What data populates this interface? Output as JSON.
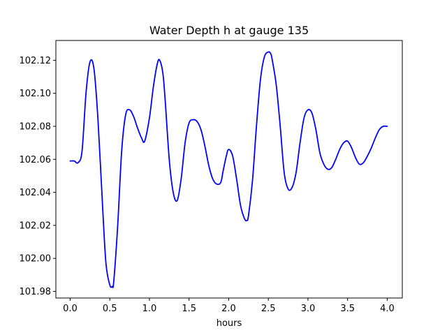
{
  "chart_data": {
    "type": "line",
    "title": "Water Depth h at gauge 135",
    "xlabel": "hours",
    "ylabel": "",
    "xlim": [
      -0.18,
      4.19
    ],
    "ylim": [
      101.976,
      102.132
    ],
    "xticks": [
      0.0,
      0.5,
      1.0,
      1.5,
      2.0,
      2.5,
      3.0,
      3.5,
      4.0
    ],
    "xtick_labels": [
      "0.0",
      "0.5",
      "1.0",
      "1.5",
      "2.0",
      "2.5",
      "3.0",
      "3.5",
      "4.0"
    ],
    "yticks": [
      101.98,
      102.0,
      102.02,
      102.04,
      102.06,
      102.08,
      102.1,
      102.12
    ],
    "ytick_labels": [
      "101.98",
      "102.00",
      "102.02",
      "102.04",
      "102.06",
      "102.08",
      "102.10",
      "102.12"
    ],
    "grid": false,
    "series": [
      {
        "color": "#0000ff",
        "x": [
          0.0,
          0.05,
          0.1,
          0.15,
          0.2,
          0.25,
          0.3,
          0.35,
          0.4,
          0.45,
          0.5,
          0.53,
          0.55,
          0.6,
          0.65,
          0.7,
          0.75,
          0.8,
          0.85,
          0.9,
          0.94,
          1.0,
          1.05,
          1.1,
          1.13,
          1.17,
          1.2,
          1.25,
          1.3,
          1.35,
          1.4,
          1.45,
          1.5,
          1.55,
          1.6,
          1.65,
          1.7,
          1.75,
          1.8,
          1.85,
          1.9,
          1.93,
          1.97,
          2.0,
          2.05,
          2.1,
          2.15,
          2.2,
          2.23,
          2.25,
          2.3,
          2.35,
          2.4,
          2.45,
          2.5,
          2.53,
          2.55,
          2.6,
          2.65,
          2.7,
          2.75,
          2.8,
          2.85,
          2.9,
          2.95,
          3.0,
          3.05,
          3.1,
          3.15,
          3.2,
          3.25,
          3.3,
          3.35,
          3.4,
          3.45,
          3.5,
          3.55,
          3.6,
          3.65,
          3.7,
          3.75,
          3.8,
          3.85,
          3.9,
          3.95,
          4.0
        ],
        "y": [
          102.059,
          102.059,
          102.058,
          102.065,
          102.1,
          102.119,
          102.115,
          102.085,
          102.04,
          101.998,
          101.984,
          101.983,
          101.986,
          102.02,
          102.065,
          102.087,
          102.09,
          102.086,
          102.079,
          102.073,
          102.071,
          102.085,
          102.104,
          102.118,
          102.12,
          102.112,
          102.095,
          102.06,
          102.04,
          102.035,
          102.048,
          102.07,
          102.082,
          102.084,
          102.083,
          102.078,
          102.068,
          102.056,
          102.048,
          102.045,
          102.046,
          102.053,
          102.062,
          102.066,
          102.062,
          102.048,
          102.032,
          102.024,
          102.023,
          102.026,
          102.047,
          102.08,
          102.108,
          102.122,
          102.125,
          102.124,
          102.12,
          102.105,
          102.08,
          102.052,
          102.042,
          102.043,
          102.052,
          102.07,
          102.085,
          102.09,
          102.088,
          102.078,
          102.064,
          102.057,
          102.054,
          102.055,
          102.06,
          102.066,
          102.07,
          102.071,
          102.067,
          102.061,
          102.057,
          102.058,
          102.062,
          102.067,
          102.073,
          102.078,
          102.08,
          102.08
        ]
      }
    ]
  }
}
